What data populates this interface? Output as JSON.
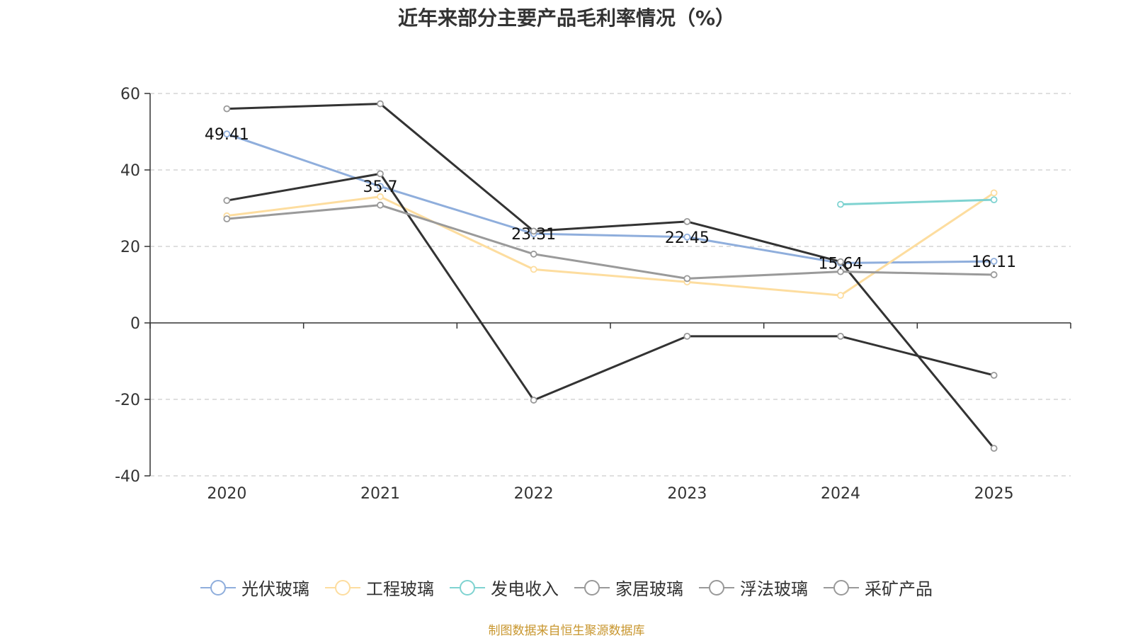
{
  "chart_data": {
    "type": "line",
    "title": "近年来部分主要产品毛利率情况（%）",
    "xlabel": "",
    "ylabel": "",
    "categories": [
      "2020",
      "2021",
      "2022",
      "2023",
      "2024",
      "2025"
    ],
    "ylim": [
      -40,
      60
    ],
    "yticks": [
      60,
      40,
      20,
      0,
      -20,
      -40
    ],
    "grid": true,
    "legend_position": "bottom",
    "series": [
      {
        "name": "光伏玻璃",
        "color": "#8faedc",
        "values": [
          49.41,
          35.7,
          23.31,
          22.45,
          15.64,
          16.11
        ],
        "labels": [
          "49.41",
          "35.7",
          "23.31",
          "22.45",
          "15.64",
          "16.11"
        ]
      },
      {
        "name": "工程玻璃",
        "color": "#fddd9f",
        "values": [
          28,
          33,
          14,
          10.7,
          7.2,
          34
        ]
      },
      {
        "name": "发电收入",
        "color": "#7fd3d1",
        "values": [
          null,
          null,
          null,
          null,
          31,
          32.2
        ]
      },
      {
        "name": "家居玻璃",
        "color": "#333333",
        "values": [
          32,
          39,
          -20.2,
          -3.5,
          -3.5,
          -13.7
        ]
      },
      {
        "name": "浮法玻璃",
        "color": "#333333",
        "values": [
          56,
          57.3,
          24,
          26.5,
          16,
          -32.8
        ]
      },
      {
        "name": "采矿产品",
        "color": "#9a9a9a",
        "values": [
          27.2,
          30.8,
          18,
          11.6,
          13.4,
          12.6
        ]
      }
    ]
  },
  "legend": {
    "items": [
      {
        "label": "光伏玻璃",
        "color": "#8faedc"
      },
      {
        "label": "工程玻璃",
        "color": "#fddd9f"
      },
      {
        "label": "发电收入",
        "color": "#7fd3d1"
      },
      {
        "label": "家居玻璃",
        "color": "#999999"
      },
      {
        "label": "浮法玻璃",
        "color": "#999999"
      },
      {
        "label": "采矿产品",
        "color": "#999999"
      }
    ]
  },
  "source_note": "制图数据来自恒生聚源数据库"
}
